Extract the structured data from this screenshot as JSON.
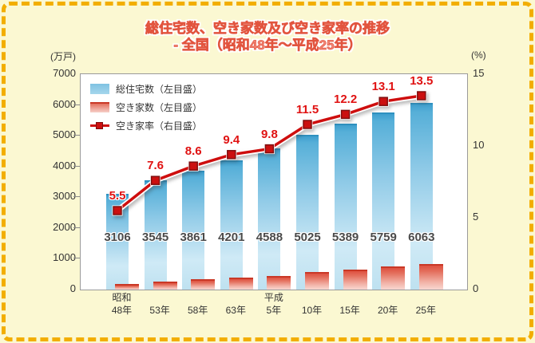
{
  "frame": {
    "background": "#FBF8D2",
    "border_color": "#F2AE00"
  },
  "chart_data": {
    "type": "bar",
    "subtype": "grouped gradient bars with overlay line (dual axis)",
    "title": "総住宅数、空き家数及び空き家率の推移",
    "subtitle": "- 全国（昭和48年～平成25年）",
    "categories": [
      "昭和48年",
      "53年",
      "58年",
      "63年",
      "平成5年",
      "10年",
      "15年",
      "20年",
      "25年"
    ],
    "category_era_row": [
      "昭和",
      "",
      "",
      "",
      "平成",
      "",
      "",
      "",
      ""
    ],
    "category_year_row": [
      "48年",
      "53年",
      "58年",
      "63年",
      "5年",
      "10年",
      "15年",
      "20年",
      "25年"
    ],
    "series": [
      {
        "name": "総住宅数（左目盛）",
        "type": "bar",
        "axis": "left",
        "data_labels": true,
        "values": [
          3106,
          3545,
          3861,
          4201,
          4588,
          5025,
          5389,
          5759,
          6063
        ]
      },
      {
        "name": "空き家数（左目盛）",
        "type": "bar",
        "axis": "left",
        "data_labels": false,
        "values": [
          172,
          268,
          330,
          394,
          448,
          576,
          659,
          757,
          820
        ]
      },
      {
        "name": "空き家率（右目盛）",
        "type": "line",
        "axis": "right",
        "data_labels": true,
        "values": [
          5.5,
          7.6,
          8.6,
          9.4,
          9.8,
          11.5,
          12.2,
          13.1,
          13.5
        ]
      }
    ],
    "left_axis": {
      "unit": "(万戸)",
      "min": 0,
      "max": 7000,
      "ticks": [
        0,
        1000,
        2000,
        3000,
        4000,
        5000,
        6000,
        7000
      ]
    },
    "right_axis": {
      "unit": "(%)",
      "min": 0,
      "max": 15,
      "ticks": [
        0,
        5,
        10,
        15
      ]
    },
    "legend": {
      "position": "inside top-left"
    },
    "grid": false,
    "colors": {
      "bar_total_top": "#56AFD8",
      "bar_total_bottom": "#BEE1F0",
      "bar_total_cap": "#2F91C0",
      "bar_vacant_top": "#DE5140",
      "bar_vacant_bottom": "#F8D7D0",
      "bar_vacant_cap": "#C93826",
      "line": "#CE0E0E",
      "marker_fill": "#CB1010",
      "marker_border": "#800E0E",
      "value_label": "#4A4A4A",
      "rate_label": "#E01212",
      "axis_text": "#333333",
      "plot_border": "#9A9A9A",
      "title": "#F28878"
    }
  }
}
